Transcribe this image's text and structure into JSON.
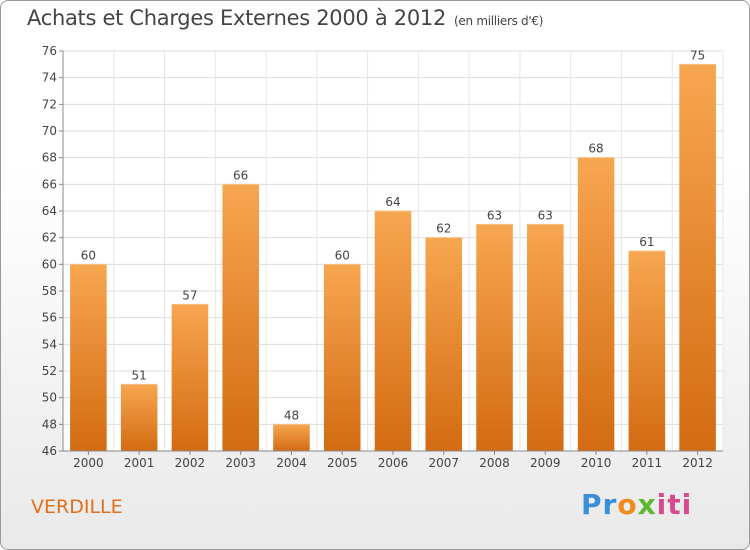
{
  "title": "Achats et Charges Externes 2000 à 2012",
  "unit": "(en milliers d'€)",
  "commune": "VERDILLE",
  "logo": {
    "p1": "Pr",
    "p2": "o",
    "p3": "x",
    "p4": "iti"
  },
  "chart_data": {
    "type": "bar",
    "categories": [
      "2000",
      "2001",
      "2002",
      "2003",
      "2004",
      "2005",
      "2006",
      "2007",
      "2008",
      "2009",
      "2010",
      "2011",
      "2012"
    ],
    "values": [
      60,
      51,
      57,
      66,
      48,
      60,
      64,
      62,
      63,
      63,
      68,
      61,
      75
    ],
    "title": "Achats et Charges Externes 2000 à 2012",
    "ylim": [
      46,
      76
    ],
    "yticks": [
      46,
      48,
      50,
      52,
      54,
      56,
      58,
      60,
      62,
      64,
      66,
      68,
      70,
      72,
      74,
      76
    ],
    "grid": true,
    "bar_color": "#e8822e"
  }
}
